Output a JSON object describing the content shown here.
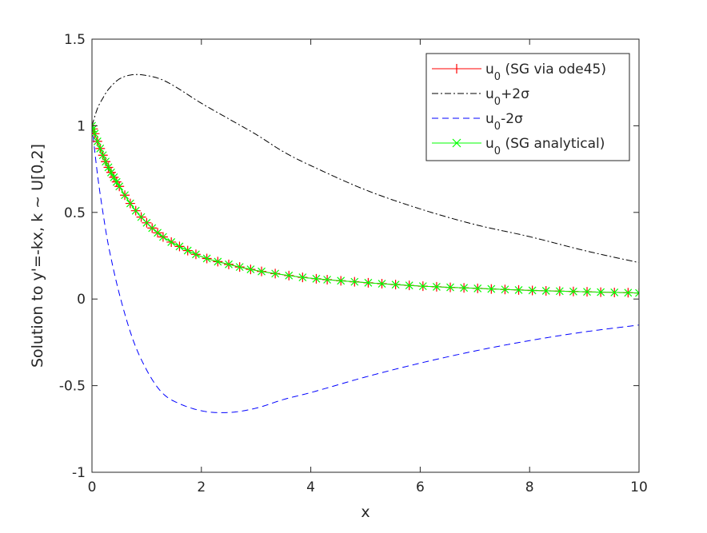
{
  "chart_data": {
    "type": "line",
    "title": "",
    "xlabel": "x",
    "ylabel": "Solution to y'=-kx, k ~ U[0,2]",
    "xlim": [
      0,
      10
    ],
    "ylim": [
      -1,
      1.5
    ],
    "xticks": [
      0,
      2,
      4,
      6,
      8,
      10
    ],
    "xtick_labels": [
      "0",
      "2",
      "4",
      "6",
      "8",
      "10"
    ],
    "yticks": [
      -1,
      -0.5,
      0,
      0.5,
      1,
      1.5
    ],
    "ytick_labels": [
      "-1",
      "-0.5",
      "0",
      "0.5",
      "1",
      "1.5"
    ],
    "grid": false,
    "legend_position": "top-right",
    "x": [
      0,
      0.1,
      0.2,
      0.3,
      0.5,
      0.75,
      1,
      1.25,
      1.5,
      2,
      2.5,
      3,
      3.5,
      4,
      5,
      6,
      7,
      8,
      9,
      10
    ],
    "series": [
      {
        "name": "u0 (SG via ode45)",
        "legend_main": "u",
        "legend_sub": "0",
        "legend_rest": " (SG via ode45)",
        "color": "#ff0000",
        "style": "solid",
        "marker": "plus",
        "values": [
          1,
          0.91,
          0.83,
          0.76,
          0.65,
          0.53,
          0.44,
          0.37,
          0.32,
          0.245,
          0.2,
          0.165,
          0.14,
          0.12,
          0.095,
          0.075,
          0.062,
          0.05,
          0.042,
          0.035
        ]
      },
      {
        "name": "u0+2σ",
        "legend_main": "u",
        "legend_sub": "0",
        "legend_rest": "+2σ",
        "color": "#000000",
        "style": "dashdot",
        "marker": "none",
        "values": [
          1,
          1.1,
          1.16,
          1.21,
          1.27,
          1.295,
          1.29,
          1.27,
          1.23,
          1.13,
          1.04,
          0.95,
          0.85,
          0.77,
          0.63,
          0.52,
          0.43,
          0.36,
          0.28,
          0.21
        ]
      },
      {
        "name": "u0-2σ",
        "legend_main": "u",
        "legend_sub": "0",
        "legend_rest": "-2σ",
        "color": "#0000ff",
        "style": "dashed",
        "marker": "none",
        "values": [
          1,
          0.72,
          0.5,
          0.31,
          0.03,
          -0.235,
          -0.41,
          -0.53,
          -0.59,
          -0.645,
          -0.655,
          -0.63,
          -0.58,
          -0.54,
          -0.45,
          -0.37,
          -0.3,
          -0.24,
          -0.19,
          -0.15
        ]
      },
      {
        "name": "u0 (SG analytical)",
        "legend_main": "u",
        "legend_sub": "0",
        "legend_rest": " (SG analytical)",
        "color": "#00ff00",
        "style": "solid",
        "marker": "x",
        "values": [
          1,
          0.91,
          0.83,
          0.76,
          0.65,
          0.53,
          0.44,
          0.37,
          0.32,
          0.245,
          0.2,
          0.165,
          0.14,
          0.12,
          0.095,
          0.075,
          0.062,
          0.05,
          0.042,
          0.035
        ]
      }
    ],
    "marker_x": [
      0,
      0.02,
      0.05,
      0.1,
      0.15,
      0.2,
      0.25,
      0.3,
      0.35,
      0.4,
      0.45,
      0.5,
      0.6,
      0.7,
      0.8,
      0.9,
      1,
      1.1,
      1.2,
      1.3,
      1.45,
      1.6,
      1.75,
      1.9,
      2.1,
      2.3,
      2.5,
      2.7,
      2.9,
      3.1,
      3.35,
      3.6,
      3.85,
      4.1,
      4.3,
      4.55,
      4.8,
      5.05,
      5.3,
      5.55,
      5.8,
      6.05,
      6.3,
      6.55,
      6.8,
      7.05,
      7.3,
      7.55,
      7.8,
      8.05,
      8.3,
      8.55,
      8.8,
      9.05,
      9.3,
      9.55,
      9.8,
      10
    ]
  }
}
